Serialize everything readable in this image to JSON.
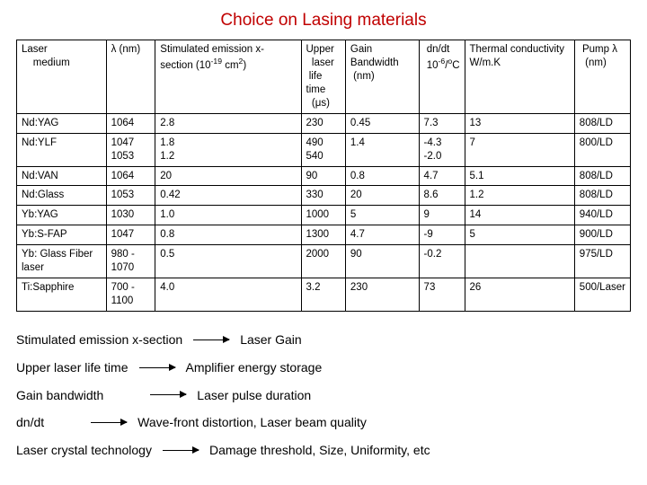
{
  "title": "Choice on Lasing materials",
  "colors": {
    "title": "#c00000",
    "border": "#000000",
    "text": "#000000",
    "background": "#ffffff"
  },
  "table": {
    "headers": [
      "Laser\n    medium",
      "λ (nm)",
      "Stimulated emission x-section (10⁻¹⁹ cm²)",
      "Upper laser life time (μs)",
      "Gain Bandwidth (nm)",
      "dn/dt 10⁻⁶/°C",
      "Thermal conductivity W/m.K",
      "Pump λ (nm)"
    ],
    "rows": [
      [
        "Nd:YAG",
        "1064",
        "2.8",
        "230",
        "0.45",
        "7.3",
        "13",
        "808/LD"
      ],
      [
        "Nd:YLF",
        "1047\n1053",
        "1.8\n1.2",
        "490\n540",
        "1.4",
        "-4.3\n-2.0",
        "7",
        "800/LD"
      ],
      [
        "Nd:VAN",
        "1064",
        "20",
        "90",
        "0.8",
        "4.7",
        "5.1",
        "808/LD"
      ],
      [
        "Nd:Glass",
        "1053",
        "0.42",
        "330",
        "20",
        "8.6",
        "1.2",
        "808/LD"
      ],
      [
        "Yb:YAG",
        "1030",
        "1.0",
        "1000",
        "5",
        "9",
        "14",
        "940/LD"
      ],
      [
        "Yb:S-FAP",
        "1047",
        "0.8",
        "1300",
        "4.7",
        "-9",
        "5",
        "900/LD"
      ],
      [
        "Yb: Glass Fiber laser",
        "980 - 1070",
        "0.5",
        "2000",
        "90",
        "-0.2",
        "",
        "975/LD"
      ],
      [
        "Ti:Sapphire",
        "700 - 1100",
        "4.0",
        "3.2",
        "230",
        "73",
        "26",
        "500/Laser"
      ]
    ]
  },
  "notes": [
    {
      "label": "Stimulated emission x-section",
      "value": "Laser Gain"
    },
    {
      "label": "Upper laser life time",
      "value": "Amplifier energy storage"
    },
    {
      "label": "Gain bandwidth",
      "value": "Laser pulse duration"
    },
    {
      "label": "dn/dt",
      "value": "Wave-front distortion, Laser beam quality"
    },
    {
      "label": "Laser crystal technology",
      "value": "Damage threshold,  Size, Uniformity, etc"
    }
  ],
  "layout": {
    "label_widths": [
      205,
      205,
      205,
      205,
      205
    ]
  }
}
